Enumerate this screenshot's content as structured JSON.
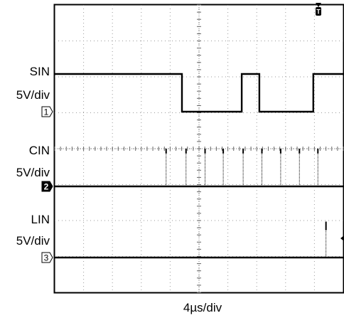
{
  "chart_data": {
    "type": "line",
    "xlabel": "4µs/div",
    "x_divisions": 10,
    "y_divisions": 8,
    "x_unit": "div",
    "x_range": [
      0,
      10
    ],
    "grid": true,
    "trigger_marker": "T",
    "trigger_position_div": 9.4,
    "channels": [
      {
        "name": "SIN",
        "scale": "5V/div",
        "marker": "1",
        "marker_style": "outline",
        "low_div": 0,
        "high_div": 1.05,
        "points": [
          [
            0,
            1.05
          ],
          [
            4.41,
            1.05
          ],
          [
            4.41,
            0
          ],
          [
            6.48,
            0
          ],
          [
            6.48,
            1.05
          ],
          [
            7.09,
            1.05
          ],
          [
            7.09,
            0
          ],
          [
            8.96,
            0
          ],
          [
            8.96,
            1.05
          ],
          [
            10,
            1.05
          ]
        ]
      },
      {
        "name": "CIN",
        "scale": "5V/div",
        "marker": "2",
        "marker_style": "filled",
        "baseline_div": 0,
        "spike_height_div": 1.05,
        "spikes_at_div": [
          3.86,
          4.55,
          5.21,
          5.84,
          6.53,
          7.18,
          7.83,
          8.48,
          9.12
        ]
      },
      {
        "name": "LIN",
        "scale": "5V/div",
        "marker": "3",
        "marker_style": "outline",
        "baseline_div": 0,
        "spike_height_div": 1.0,
        "spikes_at_div": [
          9.4
        ]
      }
    ]
  }
}
